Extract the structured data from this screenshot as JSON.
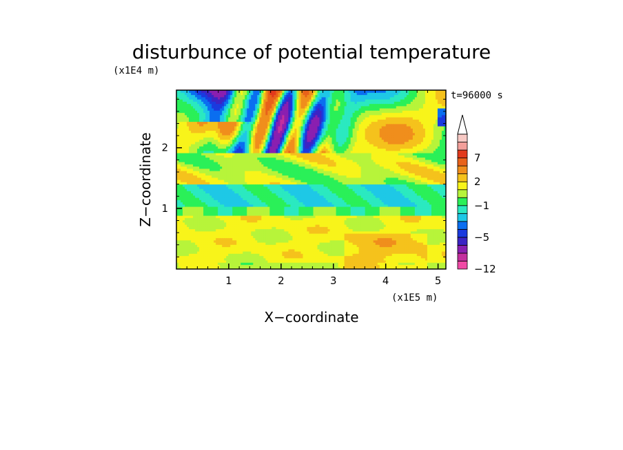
{
  "chart_data": {
    "type": "heatmap",
    "title": "disturbunce of potential temperature",
    "xlabel": "X−coordinate",
    "ylabel": "Z−coordinate",
    "x_unit": "(x1E5 m)",
    "y_unit": "(x1E4 m)",
    "time_label": "t=96000 s",
    "xlim": [
      0,
      5.15
    ],
    "ylim": [
      0,
      2.95
    ],
    "xticks": [
      1,
      2,
      3,
      4,
      5
    ],
    "yticks": [
      1,
      2
    ],
    "colorbar": {
      "levels": [
        -12,
        -10,
        -8,
        -6,
        -5,
        -4,
        -3,
        -2,
        -1,
        0,
        1,
        2,
        3,
        5,
        7,
        9,
        11
      ],
      "tick_labels": [
        "7",
        "2",
        "−1",
        "−5",
        "−12"
      ],
      "tick_values": [
        7,
        2,
        -1,
        -5,
        -12
      ],
      "colors": [
        "#f04ba6",
        "#c42f9e",
        "#8a1fb0",
        "#3c24c4",
        "#1a3adf",
        "#0a6ef0",
        "#1ec8e6",
        "#2be9c0",
        "#2af058",
        "#b7f43a",
        "#f8f41a",
        "#f5c21c",
        "#f08e1c",
        "#e8621a",
        "#e23a1c",
        "#f39f9a",
        "#f7c9c4"
      ],
      "extend_top": true
    }
  }
}
